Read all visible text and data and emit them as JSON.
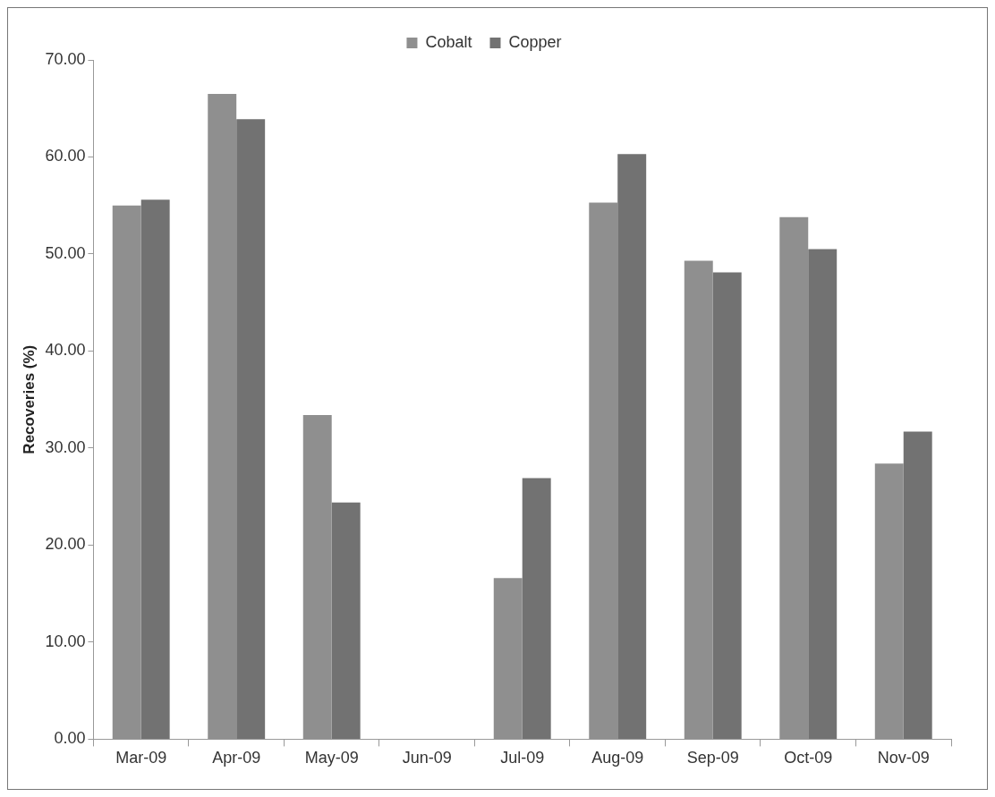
{
  "chart_data": {
    "type": "bar",
    "ylabel": "Recoveries (%)",
    "categories": [
      "Mar-09",
      "Apr-09",
      "May-09",
      "Jun-09",
      "Jul-09",
      "Aug-09",
      "Sep-09",
      "Oct-09",
      "Nov-09"
    ],
    "series": [
      {
        "name": "Cobalt",
        "color": "#8f8f8f",
        "values": [
          55.0,
          66.5,
          33.4,
          null,
          16.6,
          55.3,
          49.3,
          53.8,
          28.4
        ]
      },
      {
        "name": "Copper",
        "color": "#727272",
        "values": [
          55.6,
          63.9,
          24.4,
          null,
          26.9,
          60.3,
          48.1,
          50.5,
          31.7
        ]
      }
    ],
    "ylim": [
      0,
      70
    ],
    "yticks": [
      {
        "value": 0,
        "label": "0.00"
      },
      {
        "value": 10,
        "label": "10.00"
      },
      {
        "value": 20,
        "label": "20.00"
      },
      {
        "value": 30,
        "label": "30.00"
      },
      {
        "value": 40,
        "label": "40.00"
      },
      {
        "value": 50,
        "label": "50.00"
      },
      {
        "value": 60,
        "label": "60.00"
      },
      {
        "value": 70,
        "label": "70.00"
      }
    ],
    "grid": false,
    "legend": "top"
  }
}
